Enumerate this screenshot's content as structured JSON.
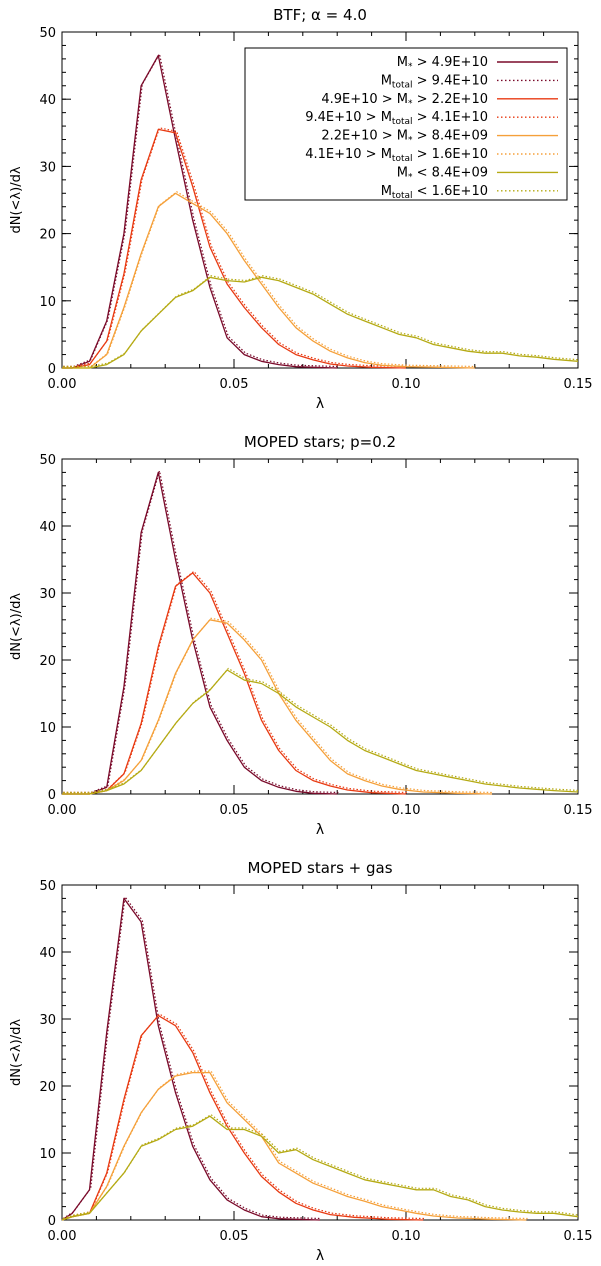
{
  "chart_data": [
    {
      "type": "line",
      "title": "BTF; α = 4.0",
      "xlabel": "λ",
      "ylabel": "dN(<λ)/dλ",
      "xlim": [
        0,
        0.15
      ],
      "ylim": [
        0,
        50
      ],
      "xticks": [
        "0.00",
        "0.05",
        "0.10",
        "0.15"
      ],
      "yticks": [
        "0",
        "10",
        "20",
        "30",
        "40",
        "50"
      ],
      "legend_position": "top-right",
      "legend": [
        {
          "main": "M",
          "sub": "*",
          "rest": " > 4.9E+10",
          "style": "solid",
          "color": "#7a0a2a"
        },
        {
          "main": "M",
          "sub": "total",
          "rest": " > 9.4E+10",
          "style": "dotted",
          "color": "#7a0a2a"
        },
        {
          "main": "4.9E+10 > M",
          "sub": "*",
          "rest": " > 2.2E+10",
          "style": "solid",
          "color": "#e83a12"
        },
        {
          "main": "9.4E+10 > M",
          "sub": "total",
          "rest": " > 4.1E+10",
          "style": "dotted",
          "color": "#e83a12"
        },
        {
          "main": "2.2E+10 > M",
          "sub": "*",
          "rest": " > 8.4E+09",
          "style": "solid",
          "color": "#f5a03a"
        },
        {
          "main": "4.1E+10 > M",
          "sub": "total",
          "rest": " > 1.6E+10",
          "style": "dotted",
          "color": "#f5a03a"
        },
        {
          "main": "M",
          "sub": "*",
          "rest": " < 8.4E+09",
          "style": "solid",
          "color": "#b5aa14"
        },
        {
          "main": "M",
          "sub": "total",
          "rest": " < 1.6E+10",
          "style": "dotted",
          "color": "#b5aa14"
        }
      ],
      "series": [
        {
          "color": "#7a0a2a",
          "x": [
            0.0,
            0.003,
            0.008,
            0.013,
            0.018,
            0.023,
            0.028,
            0.033,
            0.038,
            0.043,
            0.048,
            0.053,
            0.058,
            0.063,
            0.068,
            0.073,
            0.08
          ],
          "y": [
            0,
            0,
            1,
            7,
            20,
            42,
            46.5,
            34,
            22,
            12,
            4.5,
            2,
            1,
            0.5,
            0.2,
            0.1,
            0
          ]
        },
        {
          "color": "#e83a12",
          "x": [
            0.0,
            0.003,
            0.008,
            0.013,
            0.018,
            0.023,
            0.028,
            0.033,
            0.038,
            0.043,
            0.048,
            0.053,
            0.058,
            0.063,
            0.068,
            0.073,
            0.078,
            0.083,
            0.09,
            0.1
          ],
          "y": [
            0,
            0,
            0.5,
            4,
            14,
            28,
            35.5,
            35,
            27,
            18,
            12.5,
            9,
            6,
            3.5,
            2,
            1.2,
            0.6,
            0.3,
            0.1,
            0
          ]
        },
        {
          "color": "#f5a03a",
          "x": [
            0.0,
            0.008,
            0.013,
            0.018,
            0.023,
            0.028,
            0.033,
            0.038,
            0.043,
            0.048,
            0.053,
            0.058,
            0.063,
            0.068,
            0.073,
            0.078,
            0.083,
            0.088,
            0.093,
            0.1,
            0.11,
            0.12
          ],
          "y": [
            0,
            0,
            2,
            9,
            17,
            24,
            26,
            24.5,
            23,
            20,
            16,
            12.5,
            9,
            6,
            4,
            2.5,
            1.5,
            0.8,
            0.4,
            0.2,
            0.1,
            0
          ]
        },
        {
          "color": "#b5aa14",
          "x": [
            0.0,
            0.008,
            0.013,
            0.018,
            0.023,
            0.028,
            0.033,
            0.038,
            0.043,
            0.048,
            0.053,
            0.058,
            0.063,
            0.068,
            0.073,
            0.078,
            0.083,
            0.088,
            0.093,
            0.098,
            0.103,
            0.108,
            0.113,
            0.118,
            0.123,
            0.128,
            0.133,
            0.138,
            0.143,
            0.15
          ],
          "y": [
            0,
            0,
            0.5,
            2,
            5.5,
            8,
            10.5,
            11.5,
            13.5,
            13,
            12.8,
            13.5,
            13,
            12,
            11,
            9.5,
            8,
            7,
            6,
            5,
            4.5,
            3.5,
            3,
            2.5,
            2.2,
            2.2,
            1.8,
            1.6,
            1.3,
            1
          ]
        }
      ]
    },
    {
      "type": "line",
      "title": "MOPED stars; p=0.2",
      "xlabel": "λ",
      "ylabel": "dN(<λ)/dλ",
      "xlim": [
        0,
        0.15
      ],
      "ylim": [
        0,
        50
      ],
      "xticks": [
        "0.00",
        "0.05",
        "0.10",
        "0.15"
      ],
      "yticks": [
        "0",
        "10",
        "20",
        "30",
        "40",
        "50"
      ],
      "series": [
        {
          "color": "#7a0a2a",
          "x": [
            0.0,
            0.008,
            0.013,
            0.018,
            0.023,
            0.028,
            0.033,
            0.038,
            0.043,
            0.048,
            0.053,
            0.058,
            0.063,
            0.068,
            0.073,
            0.08
          ],
          "y": [
            0,
            0,
            1,
            16,
            39,
            48,
            35,
            23,
            13,
            8,
            4,
            2,
            1,
            0.4,
            0.1,
            0
          ]
        },
        {
          "color": "#e83a12",
          "x": [
            0.0,
            0.008,
            0.013,
            0.018,
            0.023,
            0.028,
            0.033,
            0.038,
            0.043,
            0.048,
            0.053,
            0.058,
            0.063,
            0.068,
            0.073,
            0.078,
            0.083,
            0.09,
            0.1
          ],
          "y": [
            0,
            0,
            0.5,
            3,
            10.5,
            22,
            31,
            33,
            30,
            24,
            18,
            11,
            6.5,
            3.5,
            2,
            1.2,
            0.6,
            0.2,
            0
          ]
        },
        {
          "color": "#f5a03a",
          "x": [
            0.0,
            0.008,
            0.013,
            0.018,
            0.023,
            0.028,
            0.033,
            0.038,
            0.043,
            0.048,
            0.053,
            0.058,
            0.063,
            0.068,
            0.073,
            0.078,
            0.083,
            0.088,
            0.093,
            0.098,
            0.105,
            0.115,
            0.125
          ],
          "y": [
            0,
            0,
            0.5,
            2,
            5,
            11,
            18,
            23,
            26,
            25.5,
            23,
            20,
            15,
            11,
            8,
            5,
            3,
            2,
            1.2,
            0.7,
            0.3,
            0.1,
            0
          ]
        },
        {
          "color": "#b5aa14",
          "x": [
            0.0,
            0.008,
            0.013,
            0.018,
            0.023,
            0.028,
            0.033,
            0.038,
            0.043,
            0.048,
            0.053,
            0.058,
            0.063,
            0.068,
            0.073,
            0.078,
            0.083,
            0.088,
            0.093,
            0.098,
            0.103,
            0.108,
            0.113,
            0.118,
            0.123,
            0.128,
            0.133,
            0.138,
            0.143,
            0.15
          ],
          "y": [
            0,
            0,
            0.5,
            1.5,
            3.5,
            7,
            10.5,
            13.5,
            15.5,
            18.5,
            17,
            16.5,
            15,
            13,
            11.5,
            10,
            8,
            6.5,
            5.5,
            4.5,
            3.5,
            3,
            2.5,
            2,
            1.5,
            1.2,
            0.9,
            0.7,
            0.5,
            0.3
          ]
        }
      ]
    },
    {
      "type": "line",
      "title": "MOPED stars + gas",
      "xlabel": "λ",
      "ylabel": "dN(<λ)/dλ",
      "xlim": [
        0,
        0.15
      ],
      "ylim": [
        0,
        50
      ],
      "xticks": [
        "0.00",
        "0.05",
        "0.10",
        "0.15"
      ],
      "yticks": [
        "0",
        "10",
        "20",
        "30",
        "40",
        "50"
      ],
      "series": [
        {
          "color": "#7a0a2a",
          "x": [
            0.0,
            0.003,
            0.008,
            0.013,
            0.018,
            0.023,
            0.028,
            0.033,
            0.038,
            0.043,
            0.048,
            0.053,
            0.058,
            0.063,
            0.068,
            0.075
          ],
          "y": [
            0,
            1,
            4.5,
            28,
            48,
            44.5,
            29,
            19,
            11,
            6,
            3,
            1.5,
            0.5,
            0.2,
            0.1,
            0
          ]
        },
        {
          "color": "#e83a12",
          "x": [
            0.0,
            0.003,
            0.008,
            0.013,
            0.018,
            0.023,
            0.028,
            0.033,
            0.038,
            0.043,
            0.048,
            0.053,
            0.058,
            0.063,
            0.068,
            0.073,
            0.078,
            0.085,
            0.095,
            0.105
          ],
          "y": [
            0,
            0.5,
            1,
            7,
            18,
            27.5,
            30.5,
            29,
            25,
            19,
            14,
            10,
            6.5,
            4.2,
            2.5,
            1.5,
            0.8,
            0.4,
            0.1,
            0
          ]
        },
        {
          "color": "#f5a03a",
          "x": [
            0.0,
            0.003,
            0.008,
            0.013,
            0.018,
            0.023,
            0.028,
            0.033,
            0.038,
            0.043,
            0.048,
            0.053,
            0.058,
            0.063,
            0.068,
            0.073,
            0.078,
            0.083,
            0.088,
            0.093,
            0.098,
            0.103,
            0.108,
            0.115,
            0.125,
            0.135
          ],
          "y": [
            0,
            0.5,
            1,
            5,
            11,
            16,
            19.5,
            21.5,
            22,
            22,
            17.5,
            15,
            12.5,
            8.5,
            7,
            5.5,
            4.5,
            3.5,
            2.8,
            2,
            1.5,
            1,
            0.6,
            0.3,
            0.1,
            0
          ]
        },
        {
          "color": "#b5aa14",
          "x": [
            0.0,
            0.003,
            0.008,
            0.013,
            0.018,
            0.023,
            0.028,
            0.033,
            0.038,
            0.043,
            0.048,
            0.053,
            0.058,
            0.063,
            0.068,
            0.073,
            0.078,
            0.083,
            0.088,
            0.093,
            0.098,
            0.103,
            0.108,
            0.113,
            0.118,
            0.123,
            0.128,
            0.133,
            0.138,
            0.143,
            0.15
          ],
          "y": [
            0,
            0.5,
            1,
            4,
            7,
            11,
            12,
            13.5,
            14,
            15.5,
            13.5,
            13.5,
            12.5,
            10,
            10.5,
            9,
            8,
            7,
            6,
            5.5,
            5,
            4.5,
            4.5,
            3.5,
            3,
            2,
            1.5,
            1.2,
            1,
            1,
            0.5
          ]
        }
      ]
    }
  ]
}
